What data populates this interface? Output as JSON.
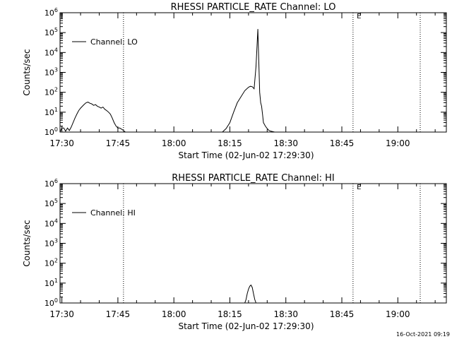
{
  "footer_date": "16-Oct-2021 09:19",
  "chart_data": [
    {
      "type": "line",
      "title": "RHESSI PARTICLE_RATE Channel: LO",
      "xlabel": "Start Time (02-Jun-02 17:29:30)",
      "ylabel": "Counts/sec",
      "yscale": "log",
      "ylim": [
        1,
        1000000
      ],
      "xlim": [
        "17:29:30",
        "19:13:00"
      ],
      "xticks": [
        "17:30",
        "17:45",
        "18:00",
        "18:15",
        "18:30",
        "18:45",
        "19:00"
      ],
      "yticks": [
        "10^0",
        "10^1",
        "10^2",
        "10^3",
        "10^4",
        "10^5",
        "10^6"
      ],
      "yticks_base": "10",
      "yticks_exp": [
        "0",
        "1",
        "2",
        "3",
        "4",
        "5",
        "6"
      ],
      "vlines": [
        "17:46:30",
        "18:48:00",
        "19:06:00"
      ],
      "marker": "E",
      "marker_time": "18:49:00",
      "legend": "Channel: LO",
      "legend_position": "top-left",
      "series": [
        {
          "name": "Channel: LO",
          "x": [
            "17:29:30",
            "17:30:00",
            "17:30:30",
            "17:31:00",
            "17:31:30",
            "17:32:00",
            "17:32:30",
            "17:33:00",
            "17:33:30",
            "17:34:00",
            "17:34:30",
            "17:35:00",
            "17:35:30",
            "17:36:00",
            "17:36:30",
            "17:37:00",
            "17:37:30",
            "17:38:00",
            "17:38:30",
            "17:39:00",
            "17:39:30",
            "17:40:00",
            "17:40:30",
            "17:41:00",
            "17:41:30",
            "17:42:00",
            "17:42:30",
            "17:43:00",
            "17:43:30",
            "17:44:00",
            "17:44:30",
            "17:45:00",
            "17:45:30",
            "17:46:00",
            "17:46:30",
            "17:47:00",
            "18:13:00",
            "18:14:00",
            "18:15:00",
            "18:16:00",
            "18:17:00",
            "18:18:00",
            "18:19:00",
            "18:20:00",
            "18:20:30",
            "18:21:00",
            "18:21:30",
            "18:22:00",
            "18:22:30",
            "18:23:00",
            "18:23:15",
            "18:23:30",
            "18:23:45",
            "18:24:00",
            "18:24:30",
            "18:25:00",
            "18:25:30",
            "18:26:00",
            "18:27:00"
          ],
          "y": [
            1,
            1.6,
            1.6,
            1.1,
            1.6,
            1.2,
            1.8,
            3,
            5,
            8,
            12,
            16,
            20,
            25,
            30,
            32,
            28,
            26,
            22,
            24,
            20,
            18,
            16,
            18,
            14,
            12,
            10,
            8,
            5,
            3,
            2,
            1.6,
            1.6,
            1.4,
            1.2,
            1,
            1,
            1.5,
            3,
            10,
            30,
            60,
            120,
            180,
            200,
            190,
            150,
            2000,
            150000,
            100,
            30,
            20,
            8,
            3,
            2,
            1.5,
            1.2,
            1.1,
            1
          ]
        }
      ]
    },
    {
      "type": "line",
      "title": "RHESSI PARTICLE_RATE Channel: HI",
      "xlabel": "Start Time (02-Jun-02 17:29:30)",
      "ylabel": "Counts/sec",
      "yscale": "log",
      "ylim": [
        1,
        1000000
      ],
      "xlim": [
        "17:29:30",
        "19:13:00"
      ],
      "xticks": [
        "17:30",
        "17:45",
        "18:00",
        "18:15",
        "18:30",
        "18:45",
        "19:00"
      ],
      "yticks": [
        "10^0",
        "10^1",
        "10^2",
        "10^3",
        "10^4",
        "10^5",
        "10^6"
      ],
      "yticks_base": "10",
      "yticks_exp": [
        "0",
        "1",
        "2",
        "3",
        "4",
        "5",
        "6"
      ],
      "vlines": [
        "17:46:30",
        "18:48:00",
        "19:06:00"
      ],
      "marker": "E",
      "marker_time": "18:49:00",
      "legend": "Channel: HI",
      "legend_position": "top-left",
      "series": [
        {
          "name": "Channel: HI",
          "x": [
            "18:19:00",
            "18:19:20",
            "18:19:40",
            "18:20:00",
            "18:20:20",
            "18:20:40",
            "18:21:00",
            "18:21:20",
            "18:21:40",
            "18:22:00"
          ],
          "y": [
            1,
            1.5,
            3,
            5,
            7,
            8,
            6,
            3,
            1.5,
            1
          ]
        }
      ]
    }
  ]
}
